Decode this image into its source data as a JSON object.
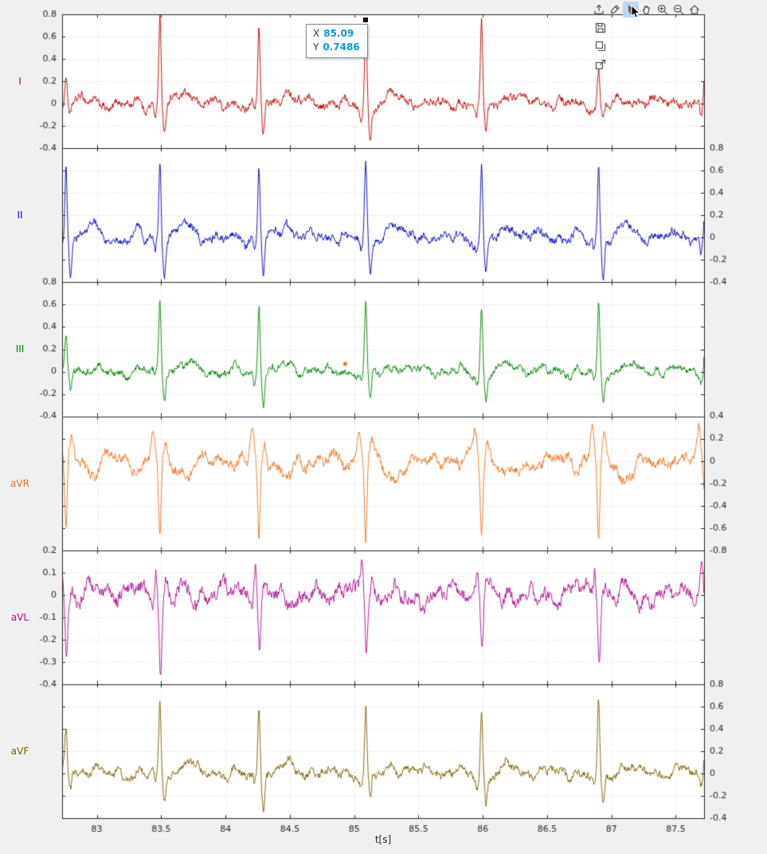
{
  "figure": {
    "toolbar": {
      "tools": [
        "export",
        "brush",
        "datatips",
        "pan",
        "zoom-in",
        "zoom-out",
        "restore-view"
      ],
      "active_tool": "datatips"
    },
    "side_tools": [
      "save",
      "copy-as-image",
      "open-in-figure"
    ]
  },
  "datatip": {
    "x_label": "X",
    "x_value": "85.09",
    "y_label": "Y",
    "y_value": "0.7486",
    "value_color": "#0b96dd"
  },
  "chart_data": {
    "type": "line",
    "title": "",
    "xlabel": "t[s]",
    "x_range": [
      82.73,
      87.72
    ],
    "xticks": [
      83,
      83.5,
      84,
      84.5,
      85,
      85.5,
      86,
      86.5,
      87,
      87.5
    ],
    "grid": true,
    "beat_times": [
      82.76,
      83.49,
      84.26,
      85.09,
      85.99,
      86.9,
      87.73
    ],
    "marker": {
      "panel": 2,
      "x": 84.93,
      "y": 0.07,
      "color": "#ee7420"
    },
    "panels": [
      {
        "lead": "I",
        "color": "#c00000",
        "ylim": [
          -0.4,
          0.8
        ],
        "yticks": [
          0.8,
          0.6,
          0.4,
          0.2,
          0,
          -0.2,
          -0.4
        ],
        "ytick_side": "left",
        "noise": 0.05,
        "beat_scale": [
          0.35,
          1.0,
          0.93,
          1.0,
          0.93,
          0.44,
          0.9
        ],
        "waves": [
          {
            "c": -0.17,
            "w": 0.03,
            "a": 0.05
          },
          {
            "c": -0.035,
            "w": 0.012,
            "a": -0.1
          },
          {
            "c": 0,
            "w": 0.012,
            "a": 0.75
          },
          {
            "c": 0.035,
            "w": 0.014,
            "a": -0.3
          },
          {
            "c": 0.21,
            "w": 0.055,
            "a": 0.1
          }
        ]
      },
      {
        "lead": "II",
        "color": "#0000c0",
        "ylim": [
          -0.4,
          0.8
        ],
        "yticks": [
          0.8,
          0.6,
          0.4,
          0.2,
          0,
          -0.2,
          -0.4
        ],
        "ytick_side": "right",
        "noise": 0.05,
        "beat_scale": [
          1.0,
          1.0,
          0.97,
          1.0,
          0.95,
          1.0,
          0.9
        ],
        "waves": [
          {
            "c": -0.17,
            "w": 0.03,
            "a": 0.06
          },
          {
            "c": -0.035,
            "w": 0.012,
            "a": -0.09
          },
          {
            "c": 0,
            "w": 0.012,
            "a": 0.66
          },
          {
            "c": 0.035,
            "w": 0.014,
            "a": -0.33
          },
          {
            "c": 0.21,
            "w": 0.055,
            "a": 0.12
          }
        ]
      },
      {
        "lead": "III",
        "color": "#008000",
        "ylim": [
          -0.4,
          0.8
        ],
        "yticks": [
          0.8,
          0.6,
          0.4,
          0.2,
          0,
          -0.2,
          -0.4
        ],
        "ytick_side": "left",
        "noise": 0.045,
        "beat_scale": [
          0.5,
          1.0,
          1.0,
          0.97,
          0.95,
          0.97,
          0.9
        ],
        "waves": [
          {
            "c": -0.17,
            "w": 0.03,
            "a": 0.04
          },
          {
            "c": -0.035,
            "w": 0.012,
            "a": -0.08
          },
          {
            "c": 0,
            "w": 0.012,
            "a": 0.63
          },
          {
            "c": 0.035,
            "w": 0.014,
            "a": -0.27
          },
          {
            "c": 0.21,
            "w": 0.055,
            "a": 0.06
          }
        ]
      },
      {
        "lead": "aVR",
        "color": "#ee7420",
        "ylim": [
          -0.8,
          0.4
        ],
        "yticks": [
          0.4,
          0.2,
          0,
          -0.2,
          -0.4,
          -0.6,
          -0.8
        ],
        "ytick_side": "right",
        "noise": 0.065,
        "beat_scale": [
          0.9,
          0.97,
          1.0,
          0.97,
          1.0,
          1.0,
          0.9
        ],
        "waves": [
          {
            "c": -0.17,
            "w": 0.035,
            "a": -0.07
          },
          {
            "c": -0.05,
            "w": 0.02,
            "a": 0.3
          },
          {
            "c": 0,
            "w": 0.014,
            "a": -0.7
          },
          {
            "c": 0.045,
            "w": 0.022,
            "a": 0.18
          },
          {
            "c": 0.21,
            "w": 0.06,
            "a": -0.14
          }
        ]
      },
      {
        "lead": "aVL",
        "color": "#b00f8a",
        "ylim": [
          -0.4,
          0.2
        ],
        "yticks": [
          0.2,
          0.1,
          0,
          -0.1,
          -0.2,
          -0.3,
          -0.4
        ],
        "ytick_side": "left",
        "noise": 0.042,
        "beat_scale": [
          0.8,
          1.0,
          0.85,
          0.8,
          0.75,
          0.8,
          0.8
        ],
        "waves": [
          {
            "c": -0.17,
            "w": 0.03,
            "a": 0.03
          },
          {
            "c": -0.03,
            "w": 0.013,
            "a": 0.15
          },
          {
            "c": 0.005,
            "w": 0.014,
            "a": -0.33
          },
          {
            "c": 0.05,
            "w": 0.02,
            "a": 0.05
          },
          {
            "c": 0.2,
            "w": 0.05,
            "a": 0.03
          }
        ]
      },
      {
        "lead": "aVF",
        "color": "#7d5f00",
        "ylim": [
          -0.4,
          0.8
        ],
        "yticks": [
          0.8,
          0.6,
          0.4,
          0.2,
          0,
          -0.2,
          -0.4
        ],
        "ytick_side": "right",
        "noise": 0.05,
        "beat_scale": [
          0.6,
          1.0,
          1.0,
          0.98,
          0.95,
          0.98,
          0.9
        ],
        "waves": [
          {
            "c": -0.17,
            "w": 0.03,
            "a": 0.05
          },
          {
            "c": -0.035,
            "w": 0.012,
            "a": -0.08
          },
          {
            "c": 0,
            "w": 0.012,
            "a": 0.62
          },
          {
            "c": 0.035,
            "w": 0.014,
            "a": -0.26
          },
          {
            "c": 0.21,
            "w": 0.055,
            "a": 0.09
          }
        ]
      }
    ]
  }
}
